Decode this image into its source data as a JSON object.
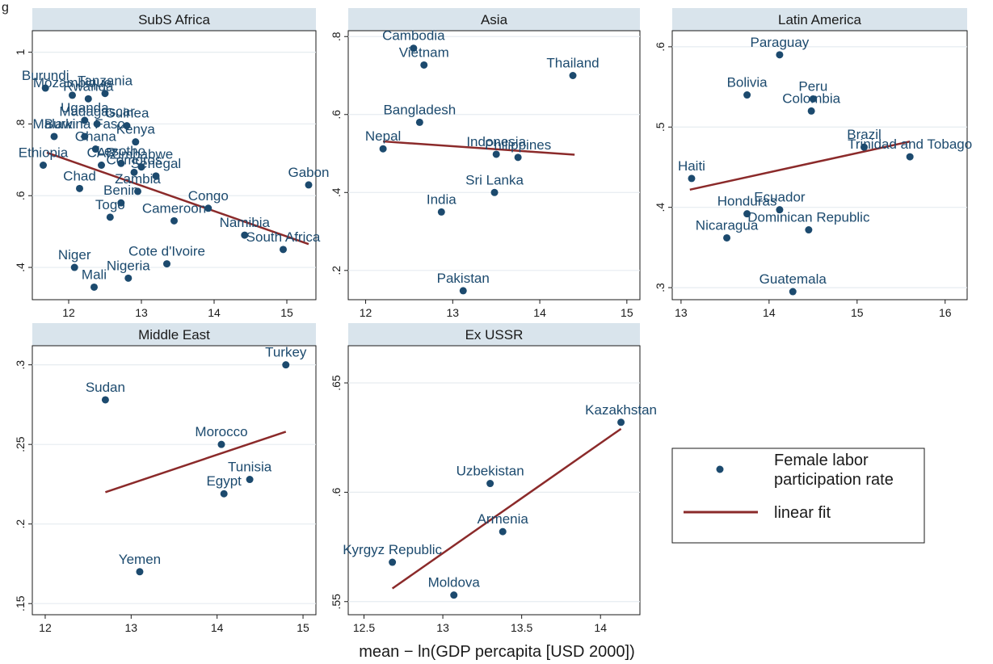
{
  "corner_label": "g",
  "xlabel": "mean − ln(GDP percapita [USD 2000])",
  "legend": {
    "point_label": [
      "Female labor",
      "participation rate"
    ],
    "line_label": "linear fit"
  },
  "colors": {
    "point": "#1c4a6e",
    "line": "#8b2a2a",
    "strip": "#d9e4ec",
    "grid": "#e6ecf0"
  },
  "chart_data": [
    {
      "type": "scatter",
      "title": "SubS Africa",
      "xlim": [
        11.5,
        15.4
      ],
      "ylim": [
        0.31,
        1.06
      ],
      "xticks": [
        12,
        13,
        14,
        15
      ],
      "xtick_labels": [
        "12",
        "13",
        "14",
        "15"
      ],
      "yticks": [
        0.4,
        0.6,
        0.8,
        1.0
      ],
      "ytick_labels": [
        ".4",
        ".6",
        ".8",
        "1"
      ],
      "fit": [
        [
          11.7,
          0.72
        ],
        [
          15.3,
          0.465
        ]
      ],
      "points": [
        {
          "label": "Burundi",
          "x": 11.68,
          "y": 0.9
        },
        {
          "label": "Mozambique",
          "x": 12.05,
          "y": 0.88
        },
        {
          "label": "Tanzania",
          "x": 12.5,
          "y": 0.885
        },
        {
          "label": "Rwanda",
          "x": 12.27,
          "y": 0.87
        },
        {
          "label": "Uganda",
          "x": 12.22,
          "y": 0.81
        },
        {
          "label": "Madagascar",
          "x": 12.39,
          "y": 0.8
        },
        {
          "label": "Guinea",
          "x": 12.8,
          "y": 0.795
        },
        {
          "label": "Malawi",
          "x": 11.8,
          "y": 0.765
        },
        {
          "label": "Burkina Faso",
          "x": 12.22,
          "y": 0.765
        },
        {
          "label": "Kenya",
          "x": 12.92,
          "y": 0.75
        },
        {
          "label": "Ghana",
          "x": 12.37,
          "y": 0.73
        },
        {
          "label": "Ethiopia",
          "x": 11.65,
          "y": 0.685
        },
        {
          "label": "CAR",
          "x": 12.45,
          "y": 0.685
        },
        {
          "label": "Lesotho",
          "x": 12.72,
          "y": 0.69
        },
        {
          "label": "Zimbabwe",
          "x": 13.0,
          "y": 0.68
        },
        {
          "label": "Comoros",
          "x": 12.9,
          "y": 0.665
        },
        {
          "label": "Chad",
          "x": 12.15,
          "y": 0.62
        },
        {
          "label": "Senegal",
          "x": 13.2,
          "y": 0.655
        },
        {
          "label": "Zambia",
          "x": 12.95,
          "y": 0.612
        },
        {
          "label": "Benin",
          "x": 12.72,
          "y": 0.58
        },
        {
          "label": "Togo",
          "x": 12.57,
          "y": 0.54
        },
        {
          "label": "Gabon",
          "x": 15.3,
          "y": 0.63
        },
        {
          "label": "Congo",
          "x": 13.92,
          "y": 0.565
        },
        {
          "label": "Cameroon",
          "x": 13.45,
          "y": 0.53
        },
        {
          "label": "Namibia",
          "x": 14.42,
          "y": 0.49
        },
        {
          "label": "South Africa",
          "x": 14.95,
          "y": 0.45
        },
        {
          "label": "Cote d'Ivoire",
          "x": 13.35,
          "y": 0.41
        },
        {
          "label": "Niger",
          "x": 12.08,
          "y": 0.4
        },
        {
          "label": "Nigeria",
          "x": 12.82,
          "y": 0.37
        },
        {
          "label": "Mali",
          "x": 12.35,
          "y": 0.345
        }
      ]
    },
    {
      "type": "scatter",
      "title": "Asia",
      "xlim": [
        11.8,
        15.15
      ],
      "ylim": [
        0.125,
        0.815
      ],
      "xticks": [
        12,
        13,
        14,
        15
      ],
      "xtick_labels": [
        "12",
        "13",
        "14",
        "15"
      ],
      "yticks": [
        0.2,
        0.4,
        0.6,
        0.8
      ],
      "ytick_labels": [
        ".2",
        ".4",
        ".6",
        ".8"
      ],
      "fit": [
        [
          12.2,
          0.531
        ],
        [
          14.4,
          0.497
        ]
      ],
      "points": [
        {
          "label": "Cambodia",
          "x": 12.55,
          "y": 0.77
        },
        {
          "label": "Vietnam",
          "x": 12.67,
          "y": 0.727
        },
        {
          "label": "Thailand",
          "x": 14.38,
          "y": 0.7
        },
        {
          "label": "Bangladesh",
          "x": 12.62,
          "y": 0.58
        },
        {
          "label": "Nepal",
          "x": 12.2,
          "y": 0.512
        },
        {
          "label": "Indonesia",
          "x": 13.5,
          "y": 0.498
        },
        {
          "label": "Philippines",
          "x": 13.75,
          "y": 0.49
        },
        {
          "label": "Sri Lanka",
          "x": 13.48,
          "y": 0.4
        },
        {
          "label": "India",
          "x": 12.87,
          "y": 0.35
        },
        {
          "label": "Pakistan",
          "x": 13.12,
          "y": 0.148
        }
      ]
    },
    {
      "type": "scatter",
      "title": "Latin America",
      "xlim": [
        12.9,
        16.25
      ],
      "ylim": [
        0.285,
        0.62
      ],
      "xticks": [
        13,
        14,
        15,
        16
      ],
      "xtick_labels": [
        "13",
        "14",
        "15",
        "16"
      ],
      "yticks": [
        0.3,
        0.4,
        0.5,
        0.6
      ],
      "ytick_labels": [
        ".3",
        ".4",
        ".5",
        ".6"
      ],
      "fit": [
        [
          13.1,
          0.422
        ],
        [
          15.6,
          0.482
        ]
      ],
      "points": [
        {
          "label": "Paraguay",
          "x": 14.12,
          "y": 0.59
        },
        {
          "label": "Bolivia",
          "x": 13.75,
          "y": 0.54
        },
        {
          "label": "Peru",
          "x": 14.5,
          "y": 0.535
        },
        {
          "label": "Colombia",
          "x": 14.48,
          "y": 0.52
        },
        {
          "label": "Brazil",
          "x": 15.08,
          "y": 0.475
        },
        {
          "label": "Trinidad and Tobago",
          "x": 15.6,
          "y": 0.463
        },
        {
          "label": "Haiti",
          "x": 13.12,
          "y": 0.436
        },
        {
          "label": "Honduras",
          "x": 13.75,
          "y": 0.392
        },
        {
          "label": "Ecuador",
          "x": 14.12,
          "y": 0.397
        },
        {
          "label": "Dominican Republic",
          "x": 14.45,
          "y": 0.372
        },
        {
          "label": "Nicaragua",
          "x": 13.52,
          "y": 0.362
        },
        {
          "label": "Guatemala",
          "x": 14.27,
          "y": 0.295
        }
      ]
    },
    {
      "type": "scatter",
      "title": "Middle East",
      "xlim": [
        11.85,
        15.15
      ],
      "ylim": [
        0.143,
        0.312
      ],
      "xticks": [
        12,
        13,
        14,
        15
      ],
      "xtick_labels": [
        "12",
        "13",
        "14",
        "15"
      ],
      "yticks": [
        0.15,
        0.2,
        0.25,
        0.3
      ],
      "ytick_labels": [
        ".15",
        ".2",
        ".25",
        ".3"
      ],
      "fit": [
        [
          12.7,
          0.22
        ],
        [
          14.8,
          0.258
        ]
      ],
      "points": [
        {
          "label": "Turkey",
          "x": 14.8,
          "y": 0.3
        },
        {
          "label": "Sudan",
          "x": 12.7,
          "y": 0.278
        },
        {
          "label": "Morocco",
          "x": 14.05,
          "y": 0.25
        },
        {
          "label": "Tunisia",
          "x": 14.38,
          "y": 0.228
        },
        {
          "label": "Egypt",
          "x": 14.08,
          "y": 0.219
        },
        {
          "label": "Yemen",
          "x": 13.1,
          "y": 0.17
        }
      ]
    },
    {
      "type": "scatter",
      "title": "Ex USSR",
      "xlim": [
        12.4,
        14.25
      ],
      "ylim": [
        0.544,
        0.667
      ],
      "xticks": [
        12.5,
        13,
        13.5,
        14
      ],
      "xtick_labels": [
        "12.5",
        "13",
        "13.5",
        "14"
      ],
      "yticks": [
        0.55,
        0.6,
        0.65
      ],
      "ytick_labels": [
        ".55",
        ".6",
        ".65"
      ],
      "fit": [
        [
          12.68,
          0.556
        ],
        [
          14.13,
          0.629
        ]
      ],
      "points": [
        {
          "label": "Kazakhstan",
          "x": 14.13,
          "y": 0.632
        },
        {
          "label": "Uzbekistan",
          "x": 13.3,
          "y": 0.604
        },
        {
          "label": "Armenia",
          "x": 13.38,
          "y": 0.582
        },
        {
          "label": "Kyrgyz Republic",
          "x": 12.68,
          "y": 0.568
        },
        {
          "label": "Moldova",
          "x": 13.07,
          "y": 0.553
        }
      ]
    }
  ]
}
